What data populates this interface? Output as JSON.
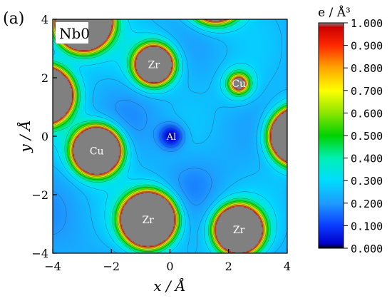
{
  "panel_label": "(a)",
  "plot_label": "Nb0",
  "chart_data": {
    "type": "contour",
    "xlabel": "x / Å",
    "ylabel": "y / Å",
    "xlim": [
      -4,
      4
    ],
    "ylim": [
      -4,
      4
    ],
    "x_ticks": [
      -4,
      -2,
      0,
      2,
      4
    ],
    "y_ticks": [
      -4,
      -2,
      0,
      2,
      4
    ],
    "x_tick_labels": [
      "−4",
      "−2",
      "0",
      "2",
      "4"
    ],
    "y_tick_labels": [
      "−4",
      "−2",
      "0",
      "2",
      "4"
    ],
    "colorbar": {
      "title": "e / Å³",
      "ticks": [
        0.0,
        0.1,
        0.2,
        0.3,
        0.4,
        0.5,
        0.6,
        0.7,
        0.8,
        0.9,
        1.0
      ],
      "tick_labels": [
        "0.000",
        "0.100",
        "0.200",
        "0.300",
        "0.400",
        "0.500",
        "0.600",
        "0.700",
        "0.800",
        "0.900",
        "1.000"
      ],
      "stops": [
        {
          "v": 0.0,
          "color": "#000000"
        },
        {
          "v": 0.02,
          "color": "#0000c8"
        },
        {
          "v": 0.1,
          "color": "#0a3cff"
        },
        {
          "v": 0.2,
          "color": "#1e9bff"
        },
        {
          "v": 0.3,
          "color": "#00dcff"
        },
        {
          "v": 0.4,
          "color": "#00f0b4"
        },
        {
          "v": 0.5,
          "color": "#00d200"
        },
        {
          "v": 0.6,
          "color": "#8ce600"
        },
        {
          "v": 0.7,
          "color": "#ffff00"
        },
        {
          "v": 0.8,
          "color": "#ffa500"
        },
        {
          "v": 0.9,
          "color": "#ff2800"
        },
        {
          "v": 0.98,
          "color": "#cc0000"
        },
        {
          "v": 1.0,
          "color": "#808080"
        }
      ],
      "above_max_color": "#808080"
    },
    "background_density": 0.22,
    "atoms": [
      {
        "label": "Zr",
        "x": -0.55,
        "y": 2.45,
        "core_radius": 0.6
      },
      {
        "label": "Cu",
        "x": 2.35,
        "y": 1.8,
        "core_radius": 0.18
      },
      {
        "label": "Cu",
        "x": -2.5,
        "y": -0.5,
        "core_radius": 0.78
      },
      {
        "label": "Al",
        "x": 0.05,
        "y": 0.0,
        "core_radius": 0.0
      },
      {
        "label": "Zr",
        "x": -0.75,
        "y": -2.85,
        "core_radius": 0.9
      },
      {
        "label": "Zr",
        "x": 2.35,
        "y": -3.2,
        "core_radius": 0.78
      },
      {
        "label": "",
        "x": -2.95,
        "y": 3.9,
        "core_radius": 0.95
      },
      {
        "label": "",
        "x": -4.3,
        "y": 1.4,
        "core_radius": 0.95
      },
      {
        "label": "",
        "x": 4.4,
        "y": 0.0,
        "core_radius": 0.95
      },
      {
        "label": "",
        "x": 1.55,
        "y": 4.9,
        "core_radius": 0.95
      }
    ],
    "grid": false
  }
}
